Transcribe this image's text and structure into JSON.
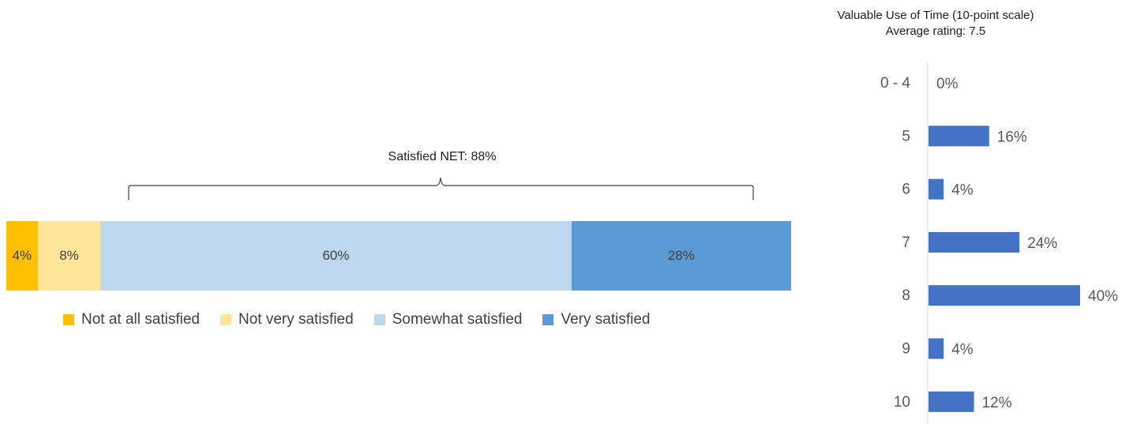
{
  "chart_data": [
    {
      "type": "bar",
      "orientation": "horizontal-stacked",
      "series": [
        {
          "name": "Not at all satisfied",
          "values": [
            4
          ],
          "label": "4%",
          "color": "#FFC000"
        },
        {
          "name": "Not very satisfied",
          "values": [
            8
          ],
          "label": "8%",
          "color": "#FFE699"
        },
        {
          "name": "Somewhat satisfied",
          "values": [
            60
          ],
          "label": "60%",
          "color": "#BDD7EE"
        },
        {
          "name": "Very satisfied",
          "values": [
            28
          ],
          "label": "28%",
          "color": "#5B9BD5"
        }
      ],
      "annotation": "Satisfied NET: 88%",
      "legend_placement": "bottom",
      "grid": false
    },
    {
      "type": "bar",
      "orientation": "horizontal",
      "title": "Valuable Use of Time (10-point scale)",
      "subtitle": "Average rating: 7.5",
      "categories": [
        "0 - 4",
        "5",
        "6",
        "7",
        "8",
        "9",
        "10"
      ],
      "values": [
        0,
        16,
        4,
        24,
        40,
        4,
        12
      ],
      "labels": [
        "0%",
        "16%",
        "4%",
        "24%",
        "40%",
        "4%",
        "12%"
      ],
      "xlim": [
        0,
        40
      ],
      "color": "#4472C4",
      "grid": false
    }
  ]
}
